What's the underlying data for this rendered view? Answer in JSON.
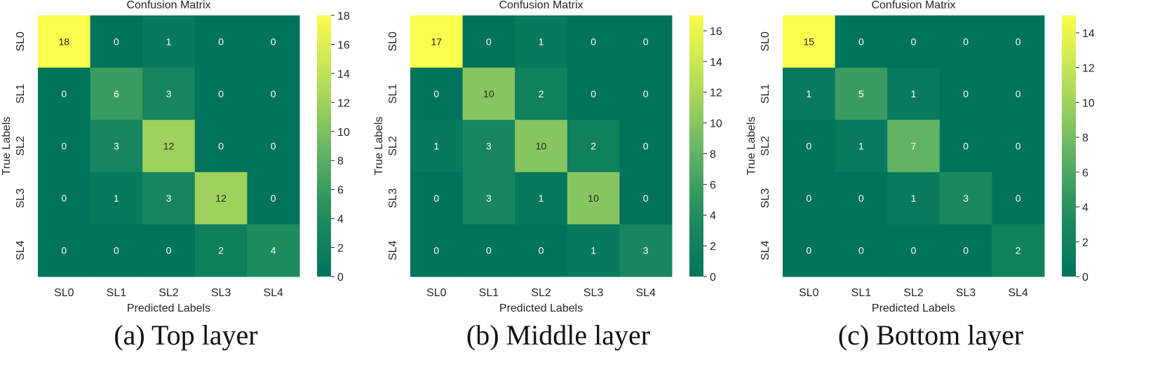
{
  "chart_data": [
    {
      "type": "heatmap",
      "title": "Confusion Matrix",
      "xlabel": "Predicted Labels",
      "ylabel": "True Labels",
      "x_categories": [
        "SL0",
        "SL1",
        "SL2",
        "SL3",
        "SL4"
      ],
      "y_categories": [
        "SL0",
        "SL1",
        "SL2",
        "SL3",
        "SL4"
      ],
      "values": [
        [
          18,
          0,
          1,
          0,
          0
        ],
        [
          0,
          6,
          3,
          0,
          0
        ],
        [
          0,
          3,
          12,
          0,
          0
        ],
        [
          0,
          1,
          3,
          12,
          0
        ],
        [
          0,
          0,
          0,
          2,
          4
        ]
      ],
      "colorbar": {
        "min": 0,
        "max": 18,
        "ticks": [
          0,
          2,
          4,
          6,
          8,
          10,
          12,
          14,
          16,
          18
        ]
      },
      "caption": "(a) Top layer"
    },
    {
      "type": "heatmap",
      "title": "Confusion Matrix",
      "xlabel": "Predicted Labels",
      "ylabel": "True Labels",
      "x_categories": [
        "SL0",
        "SL1",
        "SL2",
        "SL3",
        "SL4"
      ],
      "y_categories": [
        "SL0",
        "SL1",
        "SL2",
        "SL3",
        "SL4"
      ],
      "values": [
        [
          17,
          0,
          1,
          0,
          0
        ],
        [
          0,
          10,
          2,
          0,
          0
        ],
        [
          1,
          3,
          10,
          2,
          0
        ],
        [
          0,
          3,
          1,
          10,
          0
        ],
        [
          0,
          0,
          0,
          1,
          3
        ]
      ],
      "colorbar": {
        "min": 0,
        "max": 17,
        "ticks": [
          0,
          2,
          4,
          6,
          8,
          10,
          12,
          14,
          16
        ]
      },
      "caption": "(b) Middle layer"
    },
    {
      "type": "heatmap",
      "title": "Confusion Matrix",
      "xlabel": "Predicted Labels",
      "ylabel": "True Labels",
      "x_categories": [
        "SL0",
        "SL1",
        "SL2",
        "SL3",
        "SL4"
      ],
      "y_categories": [
        "SL0",
        "SL1",
        "SL2",
        "SL3",
        "SL4"
      ],
      "values": [
        [
          15,
          0,
          0,
          0,
          0
        ],
        [
          1,
          5,
          1,
          0,
          0
        ],
        [
          0,
          1,
          7,
          0,
          0
        ],
        [
          0,
          0,
          1,
          3,
          0
        ],
        [
          0,
          0,
          0,
          0,
          2
        ]
      ],
      "colorbar": {
        "min": 0,
        "max": 15,
        "ticks": [
          0,
          2,
          4,
          6,
          8,
          10,
          12,
          14
        ]
      },
      "caption": "(c) Bottom layer"
    }
  ],
  "colors": {
    "low": "#00735c",
    "high": "#fbfd4d"
  }
}
